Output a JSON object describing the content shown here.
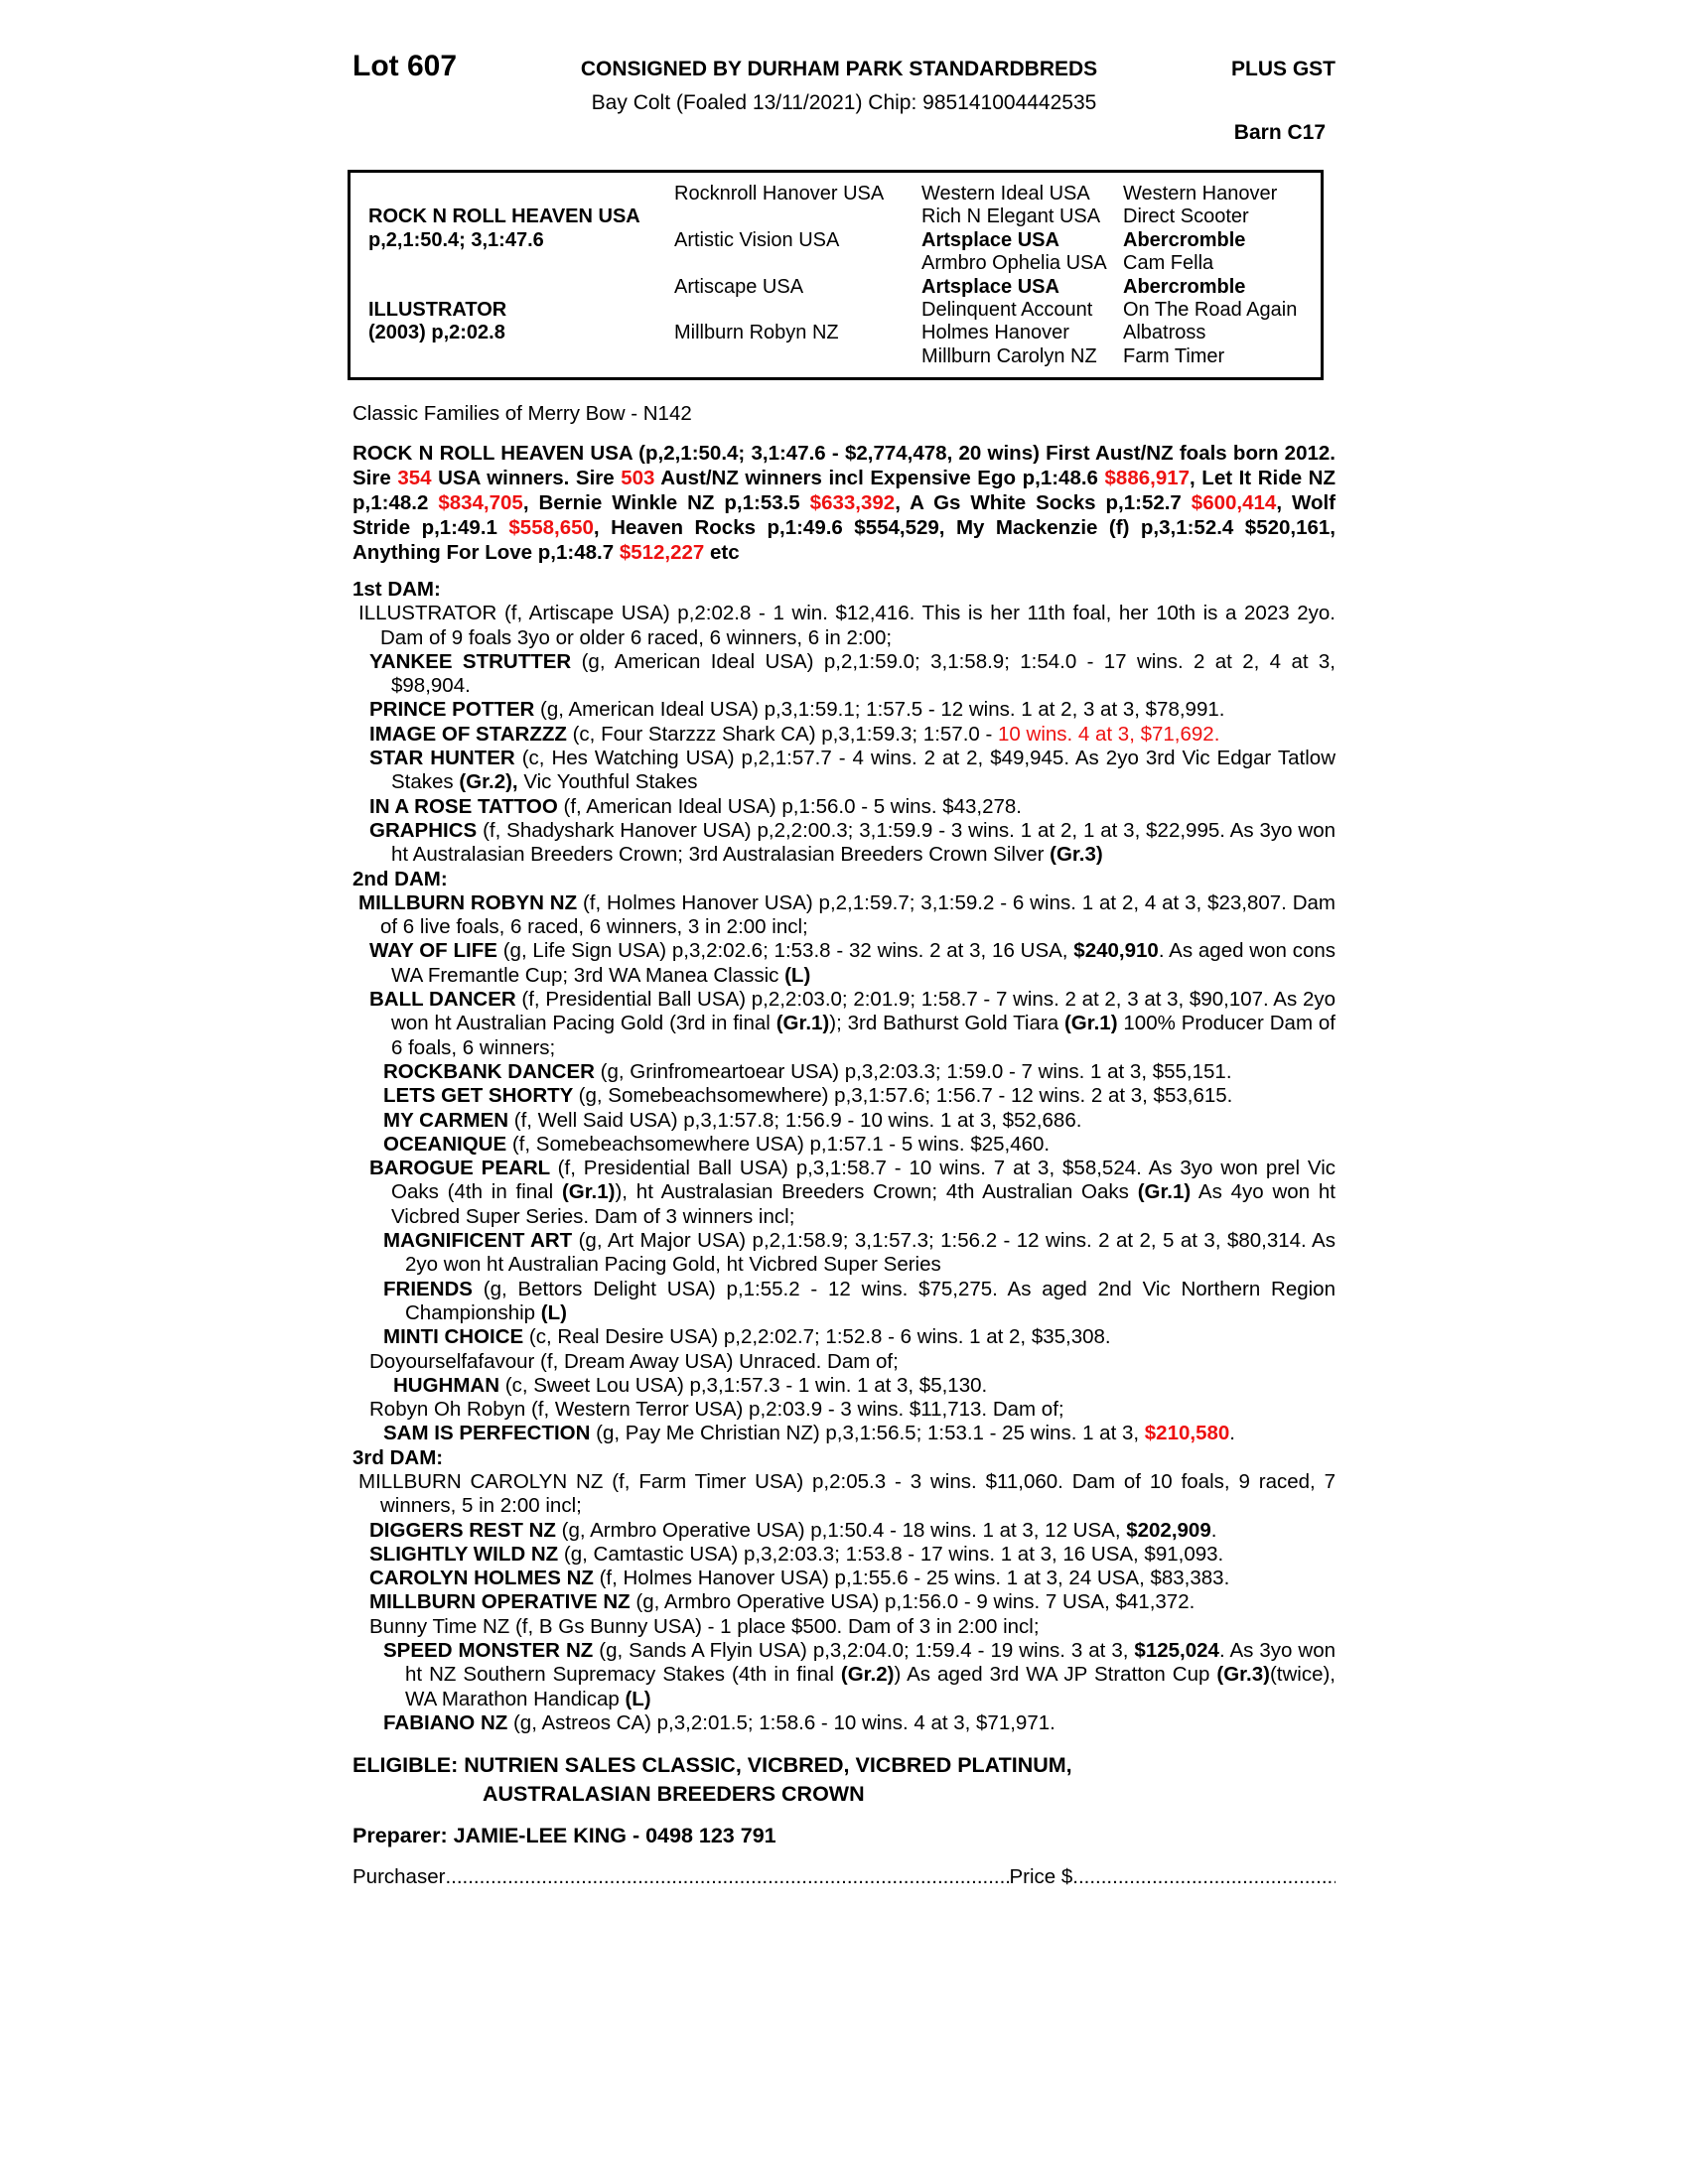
{
  "colors": {
    "accent_red": "#ee1111",
    "text": "#000000",
    "background": "#ffffff"
  },
  "header": {
    "lot": "Lot 607",
    "consignor": "CONSIGNED BY DURHAM PARK STANDARDBREDS",
    "gst": "PLUS GST",
    "description": "Bay Colt (Foaled 13/11/2021) Chip: 985141004442535",
    "barn": "Barn C17"
  },
  "pedigree": {
    "rows": [
      [
        {
          "t": ""
        },
        {
          "t": "Rocknroll Hanover USA"
        },
        {
          "t": "Western Ideal USA"
        },
        {
          "t": "Western Hanover"
        }
      ],
      [
        {
          "t": "ROCK N ROLL HEAVEN USA",
          "b": true
        },
        {
          "t": ""
        },
        {
          "t": "Rich N Elegant USA"
        },
        {
          "t": "Direct Scooter"
        }
      ],
      [
        {
          "t": "p,2,1:50.4; 3,1:47.6",
          "b": true
        },
        {
          "t": "Artistic Vision USA"
        },
        {
          "t": "Artsplace USA",
          "b": true
        },
        {
          "t": "Abercromble",
          "b": true
        }
      ],
      [
        {
          "t": ""
        },
        {
          "t": ""
        },
        {
          "t": "Armbro Ophelia USA"
        },
        {
          "t": "Cam Fella"
        }
      ],
      [
        {
          "t": ""
        },
        {
          "t": "Artiscape USA"
        },
        {
          "t": "Artsplace USA",
          "b": true
        },
        {
          "t": "Abercromble",
          "b": true
        }
      ],
      [
        {
          "t": "ILLUSTRATOR",
          "b": true
        },
        {
          "t": ""
        },
        {
          "t": "Delinquent Account"
        },
        {
          "t": "On The Road Again"
        }
      ],
      [
        {
          "t": "(2003) p,2:02.8",
          "b": true
        },
        {
          "t": "Millburn Robyn NZ"
        },
        {
          "t": "Holmes Hanover"
        },
        {
          "t": "Albatross"
        }
      ],
      [
        {
          "t": ""
        },
        {
          "t": ""
        },
        {
          "t": "Millburn Carolyn NZ"
        },
        {
          "t": "Farm Timer"
        }
      ]
    ]
  },
  "family_line": "Classic Families of Merry Bow - N142",
  "sire_summary": {
    "segments": [
      {
        "t": "ROCK N ROLL HEAVEN USA (p,2,1:50.4; 3,1:47.6 - $2,774,478, 20 wins) First Aust/NZ foals born 2012. Sire "
      },
      {
        "t": "354",
        "r": true
      },
      {
        "t": " USA winners. Sire "
      },
      {
        "t": "503",
        "r": true
      },
      {
        "t": " Aust/NZ winners incl Expensive Ego p,1:48.6 "
      },
      {
        "t": "$886,917",
        "r": true
      },
      {
        "t": ", Let It Ride NZ p,1:48.2 "
      },
      {
        "t": "$834,705",
        "r": true
      },
      {
        "t": ", Bernie Winkle NZ p,1:53.5 "
      },
      {
        "t": "$633,392",
        "r": true
      },
      {
        "t": ", A Gs White Socks p,1:52.7 "
      },
      {
        "t": "$600,414",
        "r": true
      },
      {
        "t": ", Wolf Stride p,1:49.1 "
      },
      {
        "t": "$558,650",
        "r": true
      },
      {
        "t": ", Heaven Rocks p,1:49.6 $554,529, My Mackenzie (f) p,3,1:52.4 $520,161, Anything For Love p,1:48.7 "
      },
      {
        "t": "$512,227",
        "r": true
      },
      {
        "t": " etc"
      }
    ]
  },
  "sections": [
    {
      "heading": "1st DAM:",
      "entries": [
        {
          "lvl": 1,
          "seg": [
            {
              "t": "ILLUSTRATOR (f, Artiscape USA) p,2:02.8 - 1 win. $12,416. This is her 11th foal, her 10th is a 2023 2yo. Dam of 9 foals 3yo or older 6 raced, 6 winners, 6 in 2:00;"
            }
          ]
        },
        {
          "lvl": 2,
          "seg": [
            {
              "t": "YANKEE STRUTTER ",
              "b": true
            },
            {
              "t": "(g, American Ideal USA) p,2,1:59.0; 3,1:58.9; 1:54.0 - 17 wins. 2 at 2, 4 at 3, $98,904."
            }
          ]
        },
        {
          "lvl": 2,
          "seg": [
            {
              "t": "PRINCE POTTER ",
              "b": true
            },
            {
              "t": "(g, American Ideal USA) p,3,1:59.1; 1:57.5 - 12 wins. 1 at 2, 3 at 3, $78,991."
            }
          ]
        },
        {
          "lvl": 2,
          "seg": [
            {
              "t": "IMAGE OF STARZZZ ",
              "b": true
            },
            {
              "t": "(c, Four Starzzz Shark CA) p,3,1:59.3; 1:57.0 - "
            },
            {
              "t": "10 wins. 4 at 3, $71,692.",
              "r": true
            }
          ]
        },
        {
          "lvl": 2,
          "seg": [
            {
              "t": "STAR HUNTER ",
              "b": true
            },
            {
              "t": "(c, Hes Watching USA) p,2,1:57.7 - 4 wins. 2 at 2, $49,945. As 2yo 3rd Vic Edgar Tatlow Stakes "
            },
            {
              "t": "(Gr.2),",
              "b": true
            },
            {
              "t": " Vic Youthful Stakes"
            }
          ]
        },
        {
          "lvl": 2,
          "seg": [
            {
              "t": "IN A ROSE TATTOO ",
              "b": true
            },
            {
              "t": "(f, American Ideal USA) p,1:56.0 - 5 wins. $43,278."
            }
          ]
        },
        {
          "lvl": 2,
          "seg": [
            {
              "t": "GRAPHICS ",
              "b": true
            },
            {
              "t": "(f, Shadyshark Hanover USA) p,2,2:00.3; 3,1:59.9 - 3 wins. 1 at 2, 1 at 3, $22,995. As 3yo won ht Australasian Breeders Crown; 3rd Australasian Breeders Crown Silver "
            },
            {
              "t": "(Gr.3)",
              "b": true
            }
          ]
        }
      ]
    },
    {
      "heading": "2nd DAM:",
      "entries": [
        {
          "lvl": 1,
          "seg": [
            {
              "t": "MILLBURN ROBYN NZ ",
              "b": true
            },
            {
              "t": "(f, Holmes Hanover USA) p,2,1:59.7; 3,1:59.2 - 6 wins. 1 at 2, 4 at 3, $23,807. Dam of 6 live foals, 6 raced, 6 winners, 3 in 2:00 incl;"
            }
          ]
        },
        {
          "lvl": 2,
          "seg": [
            {
              "t": "WAY OF LIFE ",
              "b": true
            },
            {
              "t": "(g, Life Sign USA) p,3,2:02.6; 1:53.8 - 32 wins. 2 at 3, 16 USA, "
            },
            {
              "t": "$240,910",
              "b": true
            },
            {
              "t": ". As aged won cons WA Fremantle Cup; 3rd WA Manea Classic "
            },
            {
              "t": "(L)",
              "b": true
            }
          ]
        },
        {
          "lvl": 2,
          "seg": [
            {
              "t": "BALL DANCER ",
              "b": true
            },
            {
              "t": "(f, Presidential Ball USA) p,2,2:03.0; 2:01.9; 1:58.7 - 7 wins. 2 at 2, 3 at 3, $90,107. As 2yo won ht Australian Pacing Gold (3rd in final "
            },
            {
              "t": "(Gr.1)",
              "b": true
            },
            {
              "t": "); 3rd Bathurst Gold Tiara "
            },
            {
              "t": "(Gr.1)",
              "b": true
            },
            {
              "t": " 100% Producer Dam of 6 foals, 6 winners;"
            }
          ]
        },
        {
          "lvl": 3,
          "seg": [
            {
              "t": "ROCKBANK DANCER ",
              "b": true
            },
            {
              "t": "(g, Grinfromeartoear USA) p,3,2:03.3; 1:59.0 - 7 wins. 1 at 3, $55,151."
            }
          ]
        },
        {
          "lvl": 3,
          "seg": [
            {
              "t": "LETS GET SHORTY ",
              "b": true
            },
            {
              "t": "(g, Somebeachsomewhere) p,3,1:57.6; 1:56.7 - 12 wins. 2 at 3, $53,615."
            }
          ]
        },
        {
          "lvl": 3,
          "seg": [
            {
              "t": "MY CARMEN ",
              "b": true
            },
            {
              "t": "(f, Well Said USA) p,3,1:57.8; 1:56.9 - 10 wins. 1 at 3, $52,686."
            }
          ]
        },
        {
          "lvl": 3,
          "seg": [
            {
              "t": "OCEANIQUE ",
              "b": true
            },
            {
              "t": "(f, Somebeachsomewhere USA) p,1:57.1 - 5 wins. $25,460."
            }
          ]
        },
        {
          "lvl": 2,
          "seg": [
            {
              "t": "BAROGUE PEARL ",
              "b": true
            },
            {
              "t": "(f, Presidential Ball USA) p,3,1:58.7 - 10 wins. 7 at 3, $58,524. As 3yo won prel Vic Oaks (4th in final "
            },
            {
              "t": "(Gr.1)",
              "b": true
            },
            {
              "t": "), ht Australasian Breeders Crown; 4th Australian Oaks "
            },
            {
              "t": "(Gr.1)",
              "b": true
            },
            {
              "t": " As 4yo won ht Vicbred Super Series. Dam of 3 winners incl;"
            }
          ]
        },
        {
          "lvl": 3,
          "seg": [
            {
              "t": "MAGNIFICENT ART ",
              "b": true
            },
            {
              "t": "(g, Art Major USA) p,2,1:58.9; 3,1:57.3; 1:56.2 - 12 wins. 2 at 2, 5 at 3, $80,314. As 2yo won ht Australian Pacing Gold, ht Vicbred Super Series"
            }
          ]
        },
        {
          "lvl": 3,
          "seg": [
            {
              "t": "FRIENDS ",
              "b": true
            },
            {
              "t": "(g, Bettors Delight USA) p,1:55.2 - 12 wins. $75,275. As aged 2nd Vic Northern Region Championship "
            },
            {
              "t": "(L)",
              "b": true
            }
          ]
        },
        {
          "lvl": 3,
          "seg": [
            {
              "t": "MINTI CHOICE ",
              "b": true
            },
            {
              "t": "(c, Real Desire USA) p,2,2:02.7; 1:52.8 - 6 wins. 1 at 2, $35,308."
            }
          ]
        },
        {
          "lvl": 2,
          "seg": [
            {
              "t": "Doyourselfafavour (f, Dream Away USA) Unraced. Dam of;"
            }
          ]
        },
        {
          "lvl": 4,
          "seg": [
            {
              "t": "HUGHMAN ",
              "b": true
            },
            {
              "t": "(c, Sweet Lou USA) p,3,1:57.3 - 1 win. 1 at 3, $5,130."
            }
          ]
        },
        {
          "lvl": 2,
          "seg": [
            {
              "t": "Robyn Oh Robyn (f, Western Terror USA) p,2:03.9 - 3 wins. $11,713. Dam of;"
            }
          ]
        },
        {
          "lvl": 3,
          "seg": [
            {
              "t": "SAM IS PERFECTION ",
              "b": true
            },
            {
              "t": "(g, Pay Me Christian NZ) p,3,1:56.5; 1:53.1 - 25 wins. 1 at 3, "
            },
            {
              "t": "$210,580",
              "b": true,
              "r": true
            },
            {
              "t": "."
            }
          ]
        }
      ]
    },
    {
      "heading": "3rd DAM:",
      "entries": [
        {
          "lvl": 1,
          "seg": [
            {
              "t": "MILLBURN CAROLYN NZ (f, Farm Timer USA) p,2:05.3 - 3 wins. $11,060. Dam of 10 foals, 9 raced, 7 winners, 5 in 2:00 incl;"
            }
          ]
        },
        {
          "lvl": 2,
          "seg": [
            {
              "t": "DIGGERS REST NZ ",
              "b": true
            },
            {
              "t": "(g, Armbro Operative USA) p,1:50.4 - 18 wins. 1 at 3, 12 USA, "
            },
            {
              "t": "$202,909",
              "b": true
            },
            {
              "t": "."
            }
          ]
        },
        {
          "lvl": 2,
          "seg": [
            {
              "t": "SLIGHTLY WILD NZ ",
              "b": true
            },
            {
              "t": "(g, Camtastic USA) p,3,2:03.3; 1:53.8 - 17 wins. 1 at 3, 16 USA, $91,093."
            }
          ]
        },
        {
          "lvl": 2,
          "seg": [
            {
              "t": "CAROLYN HOLMES NZ ",
              "b": true
            },
            {
              "t": "(f, Holmes Hanover USA) p,1:55.6 - 25 wins. 1 at 3, 24 USA, $83,383."
            }
          ]
        },
        {
          "lvl": 2,
          "seg": [
            {
              "t": "MILLBURN OPERATIVE NZ ",
              "b": true
            },
            {
              "t": "(g, Armbro Operative USA) p,1:56.0 - 9 wins. 7 USA, $41,372."
            }
          ]
        },
        {
          "lvl": 2,
          "seg": [
            {
              "t": "Bunny Time NZ (f, B Gs Bunny USA) - 1 place $500. Dam of 3 in 2:00 incl;"
            }
          ]
        },
        {
          "lvl": 3,
          "seg": [
            {
              "t": "SPEED MONSTER NZ ",
              "b": true
            },
            {
              "t": "(g, Sands A Flyin USA) p,3,2:04.0; 1:59.4 - 19 wins. 3 at 3, "
            },
            {
              "t": "$125,024",
              "b": true
            },
            {
              "t": ". As 3yo won ht NZ Southern Supremacy Stakes (4th in final "
            },
            {
              "t": "(Gr.2)",
              "b": true
            },
            {
              "t": ") As aged 3rd WA JP Stratton Cup "
            },
            {
              "t": "(Gr.3)",
              "b": true
            },
            {
              "t": "(twice), WA Marathon Handicap "
            },
            {
              "t": "(L)",
              "b": true
            }
          ]
        },
        {
          "lvl": 3,
          "seg": [
            {
              "t": "FABIANO NZ ",
              "b": true
            },
            {
              "t": "(g, Astreos CA) p,3,2:01.5; 1:58.6 - 10 wins. 4 at 3, $71,971."
            }
          ]
        }
      ]
    }
  ],
  "eligible": {
    "line1": "ELIGIBLE: NUTRIEN SALES CLASSIC, VICBRED, VICBRED PLATINUM,",
    "line2": "AUSTRALASIAN BREEDERS CROWN"
  },
  "preparer": "Preparer: JAMIE-LEE KING - 0498 123 791",
  "purchaser_line": {
    "label": "Purchaser",
    "leader1": "........................................................................................................................................",
    "price_label": "Price $",
    "leader2": "................................................................................"
  }
}
